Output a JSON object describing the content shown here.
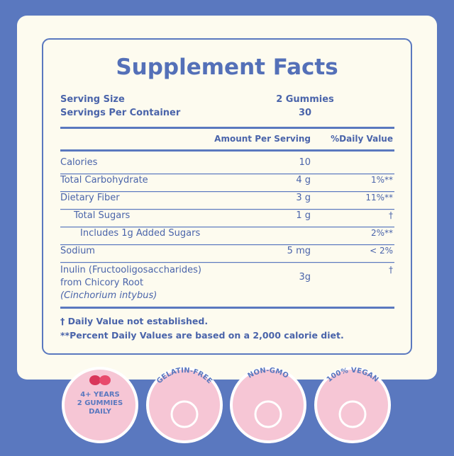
{
  "label": {
    "title": "Supplement Facts",
    "serving": [
      {
        "label": "Serving Size",
        "value": "2 Gummies"
      },
      {
        "label": "Servings Per Container",
        "value": "30"
      }
    ],
    "header": {
      "amount": "Amount Per Serving",
      "daily": "%Daily Value"
    },
    "rows": [
      {
        "name": [
          "Calories"
        ],
        "amount": "10",
        "daily": ""
      },
      {
        "name": [
          "Total Carbohydrate"
        ],
        "amount": "4 g",
        "daily": "1%**"
      },
      {
        "name": [
          "Dietary Fiber"
        ],
        "amount": "3 g",
        "daily": "11%**"
      },
      {
        "name": [
          "Total Sugars"
        ],
        "amount": "1 g",
        "daily": "†"
      },
      {
        "name": [
          "Includes 1g Added Sugars"
        ],
        "amount": "",
        "daily": "2%**"
      },
      {
        "name": [
          "Sodium"
        ],
        "amount": "5 mg",
        "daily": "< 2%"
      },
      {
        "name": [
          "Inulin (Fructooligosaccharides)",
          "from Chicory Root",
          "(Cinchorium intybus)"
        ],
        "amount": "3g",
        "daily": "†"
      }
    ],
    "footnotes": [
      "† Daily Value not established.",
      "**Percent Daily Values are based on a 2,000 calorie diet."
    ]
  },
  "badges": [
    {
      "lines": [
        "4+ YEARS",
        "2 GUMMIES",
        "DAILY"
      ]
    },
    {
      "arc": "GELATIN-FREE"
    },
    {
      "arc": "NON-GMO"
    },
    {
      "arc": "100% VEGAN"
    }
  ]
}
